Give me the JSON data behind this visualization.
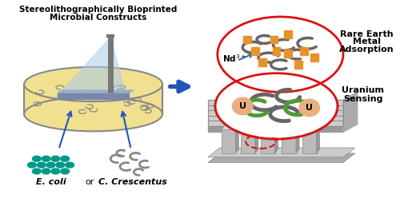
{
  "title_line1": "Stereolithographically Bioprinted",
  "title_line2": "Microbial Constructs",
  "label_ecoli": "E. coli",
  "label_or": "or",
  "label_crescentus": "C. Crescentus",
  "label_rare_earth_line1": "Rare Earth",
  "label_rare_earth_line2": "Metal",
  "label_rare_earth_line3": "Adsorption",
  "label_uranium_line1": "Uranium",
  "label_uranium_line2": "Sensing",
  "label_nd": "Nd",
  "label_u": "U",
  "bg_color": "#ffffff",
  "teal_color": "#009988",
  "orange_color": "#e8922a",
  "green_color": "#4a9e30",
  "blue_arrow_color": "#2255bb",
  "red_color": "#dd1111",
  "grid_dark": "#888888",
  "grid_light": "#bbbbbb",
  "tank_fill": "#f0e090",
  "tank_stroke": "#888888",
  "light_blue": "#aaccee",
  "salmon_color": "#e8b080",
  "bacteria_gray": "#666666",
  "rod_color": "#777777",
  "electrode_color": "#aaaaaa"
}
